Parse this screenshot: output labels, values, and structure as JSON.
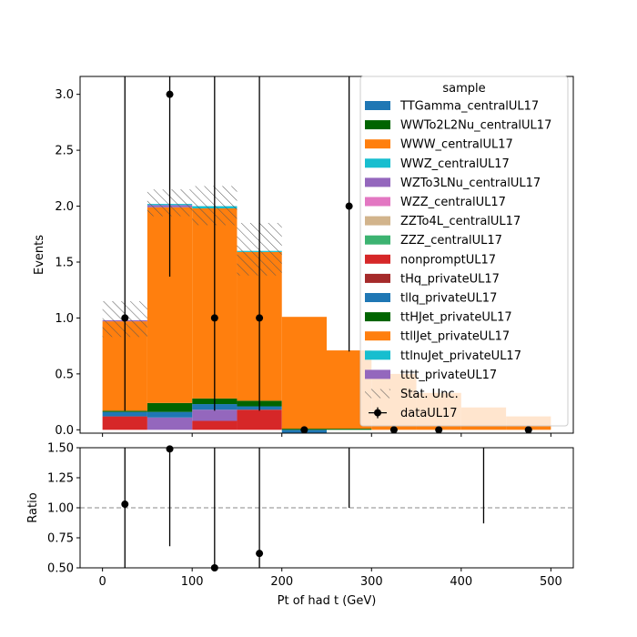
{
  "chart_data": [
    {
      "type": "bar",
      "stacked": true,
      "histogram": true,
      "bin_edges": [
        0,
        50,
        100,
        150,
        200,
        250,
        300,
        350,
        400,
        450,
        500
      ],
      "ylabel": "Events",
      "xlim": [
        -25,
        525
      ],
      "ylim": [
        -0.03,
        3.16
      ],
      "yticks": [
        "0.0",
        "0.5",
        "1.0",
        "1.5",
        "2.0",
        "2.5",
        "3.0"
      ],
      "legend": {
        "title": "sample",
        "position": "top-right",
        "entries": [
          {
            "label": "TTGamma_centralUL17",
            "color": "#1f77b4"
          },
          {
            "label": "WWTo2L2Nu_centralUL17",
            "color": "#006400"
          },
          {
            "label": "WWW_centralUL17",
            "color": "#ff7f0e"
          },
          {
            "label": "WWZ_centralUL17",
            "color": "#17becf"
          },
          {
            "label": "WZTo3LNu_centralUL17",
            "color": "#9467bd"
          },
          {
            "label": "WZZ_centralUL17",
            "color": "#e377c2"
          },
          {
            "label": "ZZTo4L_centralUL17",
            "color": "#d2b48c"
          },
          {
            "label": "ZZZ_centralUL17",
            "color": "#3cb371"
          },
          {
            "label": "nonpromptUL17",
            "color": "#d62728"
          },
          {
            "label": "tHq_privateUL17",
            "color": "#a52a2a"
          },
          {
            "label": "tllq_privateUL17",
            "color": "#1f77b4"
          },
          {
            "label": "ttHJet_privateUL17",
            "color": "#006400"
          },
          {
            "label": "ttllJet_privateUL17",
            "color": "#ff7f0e"
          },
          {
            "label": "ttlnuJet_privateUL17",
            "color": "#17becf"
          },
          {
            "label": "tttt_privateUL17",
            "color": "#9467bd"
          },
          {
            "label": "Stat. Unc.",
            "hatch": true
          },
          {
            "label": "dataUL17",
            "marker": true
          }
        ]
      },
      "stack": [
        {
          "sample": "nonpromptUL17",
          "color": "#d62728",
          "values": [
            0.12,
            0.0,
            0.08,
            0.18,
            0.0,
            0.0,
            0.0,
            0.0,
            0.0,
            0.0
          ]
        },
        {
          "sample": "tttt_privateUL17",
          "color": "#9467bd",
          "values": [
            0.0,
            0.11,
            0.1,
            0.0,
            0.0,
            0.0,
            0.0,
            0.0,
            0.0,
            0.0
          ]
        },
        {
          "sample": "tllq_privateUL17",
          "color": "#1f77b4",
          "values": [
            0.04,
            0.05,
            0.05,
            0.03,
            -0.03,
            0.0,
            0.0,
            0.0,
            0.0,
            0.0
          ]
        },
        {
          "sample": "ttHJet_privateUL17",
          "color": "#006400",
          "values": [
            0.01,
            0.08,
            0.05,
            0.05,
            0.01,
            0.01,
            0.0,
            0.0,
            0.0,
            0.0
          ]
        },
        {
          "sample": "ttllJet_privateUL17",
          "color": "#ff7f0e",
          "values": [
            0.8,
            1.75,
            1.7,
            1.33,
            1.0,
            0.7,
            0.5,
            0.33,
            0.2,
            0.12
          ]
        },
        {
          "sample": "tttt_privateUL17",
          "color": "#9467bd",
          "values": [
            0.01,
            0.02,
            0.0,
            0.0,
            0.0,
            0.0,
            0.0,
            0.0,
            0.0,
            0.0
          ]
        },
        {
          "sample": "ttlnuJet_privateUL17",
          "color": "#17becf",
          "values": [
            0.0,
            0.01,
            0.02,
            0.01,
            0.0,
            0.0,
            0.0,
            0.0,
            0.0,
            0.0
          ]
        }
      ],
      "stat_unc": [
        {
          "lo": 0.83,
          "hi": 1.15
        },
        {
          "lo": 1.91,
          "hi": 2.15
        },
        {
          "lo": 1.83,
          "hi": 2.18
        },
        {
          "lo": 1.38,
          "hi": 1.85
        },
        null,
        null,
        null,
        null,
        null,
        null
      ],
      "data_points": [
        {
          "x": 25,
          "y": 1,
          "lo": 0.17,
          "hi": 3.3
        },
        {
          "x": 75,
          "y": 3,
          "lo": 1.37,
          "hi": 3.3
        },
        {
          "x": 125,
          "y": 1,
          "lo": 0.17,
          "hi": 3.3
        },
        {
          "x": 175,
          "y": 1,
          "lo": 0.17,
          "hi": 3.3
        },
        {
          "x": 225,
          "y": 0,
          "lo": 0,
          "hi": 0
        },
        {
          "x": 275,
          "y": 2,
          "lo": 0.7,
          "hi": 3.3
        },
        {
          "x": 325,
          "y": 0,
          "lo": 0,
          "hi": 0
        },
        {
          "x": 375,
          "y": 0,
          "lo": 0,
          "hi": 0
        },
        {
          "x": 475,
          "y": 0,
          "lo": 0,
          "hi": 0
        }
      ]
    },
    {
      "type": "scatter",
      "xlabel": "Pt of had t (GeV)",
      "ylabel": "Ratio",
      "xlim": [
        -25,
        525
      ],
      "ylim": [
        0.5,
        1.5
      ],
      "xticks": [
        "0",
        "100",
        "200",
        "300",
        "400",
        "500"
      ],
      "yticks": [
        "0.50",
        "0.75",
        "1.00",
        "1.25",
        "1.50"
      ],
      "reference_line": 1.0,
      "points": [
        {
          "x": 25,
          "y": 1.03,
          "lo": 0.5,
          "hi": 1.5
        },
        {
          "x": 75,
          "y": 1.49,
          "lo": 0.68,
          "hi": 1.5
        },
        {
          "x": 125,
          "y": 0.5,
          "lo": 0.5,
          "hi": 1.5
        },
        {
          "x": 175,
          "y": 0.62,
          "lo": 0.5,
          "hi": 1.5
        },
        {
          "x": 275,
          "y": null,
          "lo": 1.0,
          "hi": 1.5
        },
        {
          "x": 425,
          "y": null,
          "lo": 0.87,
          "hi": 1.5
        }
      ]
    }
  ]
}
